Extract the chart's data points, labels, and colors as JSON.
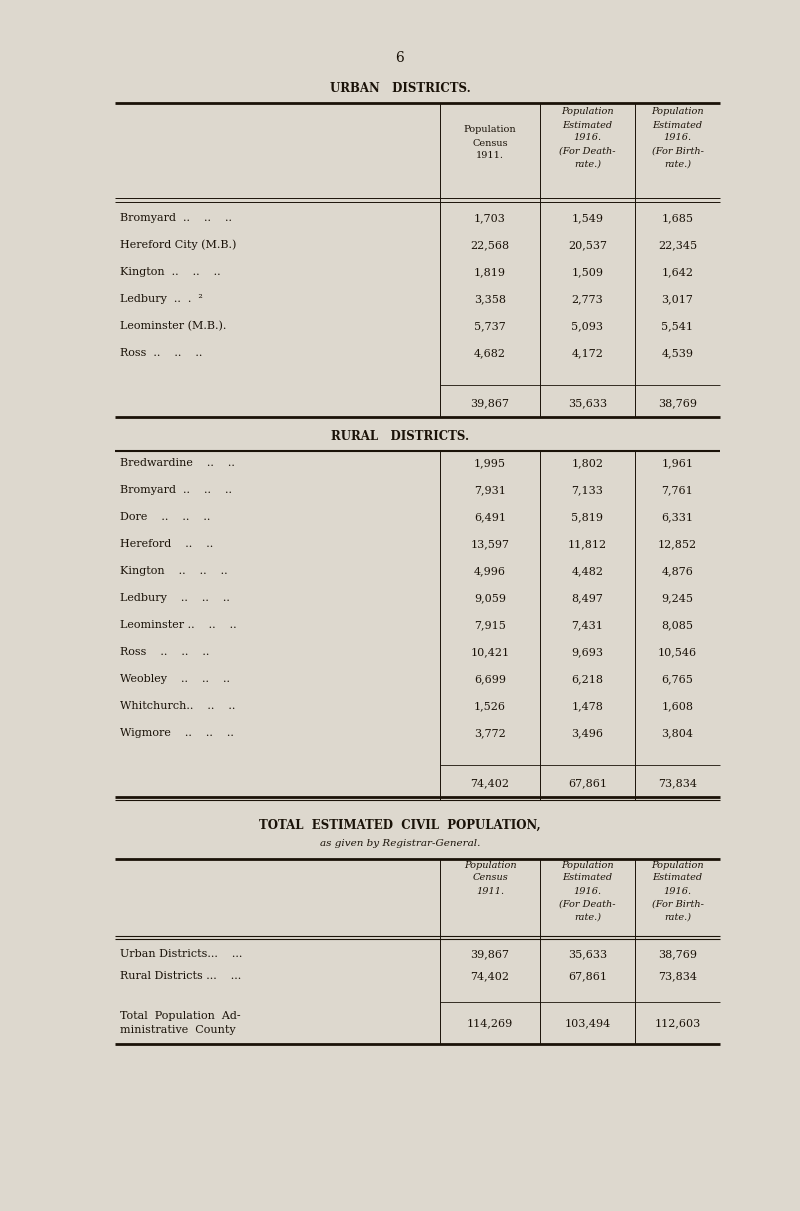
{
  "page_number": "6",
  "bg_color": "#ddd8ce",
  "text_color": "#1a1208",
  "urban_title": "URBAN   DISTRICTS.",
  "rural_title": "RURAL   DISTRICTS.",
  "total_title": "TOTAL  ESTIMATED  CIVIL  POPULATION,",
  "total_subtitle": "as given by Registrar-General.",
  "urban_rows": [
    [
      "Bromyard  ..    ..    ..",
      "1,703",
      "1,549",
      "1,685"
    ],
    [
      "Hereford City (M.B.)",
      "22,568",
      "20,537",
      "22,345"
    ],
    [
      "Kington  ..    ..    ..",
      "1,819",
      "1,509",
      "1,642"
    ],
    [
      "Ledbury  ..  .  ²",
      "3,358",
      "2,773",
      "3,017"
    ],
    [
      "Leominster (M.B.).",
      "5,737",
      "5,093",
      "5,541"
    ],
    [
      "Ross  ..    ..    ..",
      "4,682",
      "4,172",
      "4,539"
    ]
  ],
  "urban_totals": [
    "39,867",
    "35,633",
    "38,769"
  ],
  "rural_rows": [
    [
      "Bredwardine    ..    ..",
      "1,995",
      "1,802",
      "1,961"
    ],
    [
      "Bromyard  ..    ..    ..",
      "7,931",
      "7,133",
      "7,761"
    ],
    [
      "Dore    ..    ..    ..",
      "6,491",
      "5,819",
      "6,331"
    ],
    [
      "Hereford    ..    ..",
      "13,597",
      "11,812",
      "12,852"
    ],
    [
      "Kington    ..    ..    ..",
      "4,996",
      "4,482",
      "4,876"
    ],
    [
      "Ledbury    ..    ..    ..",
      "9,059",
      "8,497",
      "9,245"
    ],
    [
      "Leominster ..    ..    ..",
      "7,915",
      "7,431",
      "8,085"
    ],
    [
      "Ross    ..    ..    ..",
      "10,421",
      "9,693",
      "10,546"
    ],
    [
      "Weobley    ..    ..    ..",
      "6,699",
      "6,218",
      "6,765"
    ],
    [
      "Whitchurch..    ..    ..",
      "1,526",
      "1,478",
      "1,608"
    ],
    [
      "Wigmore    ..    ..    ..",
      "3,772",
      "3,496",
      "3,804"
    ]
  ],
  "rural_totals": [
    "74,402",
    "67,861",
    "73,834"
  ],
  "summary_rows": [
    [
      "Urban Districts...    ...",
      "39,867",
      "35,633",
      "38,769"
    ],
    [
      "Rural Districts ...    ...",
      "74,402",
      "67,861",
      "73,834"
    ]
  ],
  "summary_total_label1": "Total  Population  Ad-",
  "summary_total_label2": "ministrative  County",
  "summary_totals": [
    "114,269",
    "103,494",
    "112,603"
  ],
  "fs_page": 10,
  "fs_title": 8.5,
  "fs_header": 7.0,
  "fs_data": 8.0,
  "fs_subtitle": 7.5
}
